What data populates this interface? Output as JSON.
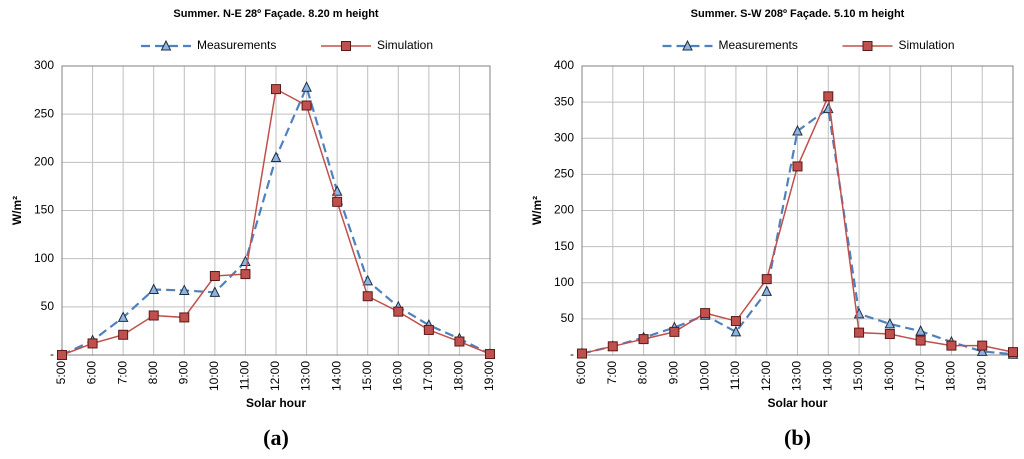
{
  "chart_data": [
    {
      "type": "line",
      "title": "Summer. N-E 28º Façade. 8.20 m height",
      "x_label": "Solar hour",
      "y_label": "W/m²",
      "panel_label": "(a)",
      "categories": [
        "5:00",
        "6:00",
        "7:00",
        "8:00",
        "9:00",
        "10:00",
        "11:00",
        "12:00",
        "13:00",
        "14:00",
        "15:00",
        "16:00",
        "17:00",
        "18:00",
        "19:00"
      ],
      "series": [
        {
          "name": "Measurements",
          "color": "#4f81bd",
          "marker": "triangle",
          "dashed": true,
          "values": [
            0,
            15,
            39,
            68,
            67,
            65,
            97,
            205,
            278,
            170,
            77,
            50,
            31,
            17,
            1
          ]
        },
        {
          "name": "Simulation",
          "color": "#c0504d",
          "marker": "square",
          "dashed": false,
          "values": [
            0,
            12,
            21,
            41,
            39,
            82,
            84,
            276,
            259,
            159,
            61,
            45,
            26,
            14,
            1
          ]
        }
      ],
      "ylim": [
        0,
        300
      ],
      "yticks": [
        {
          "value": 0,
          "label": "-"
        },
        50,
        100,
        150,
        200,
        250,
        300
      ],
      "grid": true,
      "legend": "top"
    },
    {
      "type": "line",
      "title": "Summer. S-W 208º Façade. 5.10 m height",
      "x_label": "Solar hour",
      "y_label": "W/m²",
      "panel_label": "(b)",
      "categories": [
        "6:00",
        "7:00",
        "8:00",
        "9:00",
        "10:00",
        "11:00",
        "12:00",
        "13:00",
        "14:00",
        "15:00",
        "16:00",
        "17:00",
        "18:00",
        "19:00",
        null
      ],
      "series": [
        {
          "name": "Measurements",
          "color": "#4f81bd",
          "marker": "triangle",
          "dashed": true,
          "values": [
            2,
            12,
            24,
            38,
            55,
            32,
            88,
            310,
            341,
            57,
            43,
            33,
            18,
            5,
            1
          ]
        },
        {
          "name": "Simulation",
          "color": "#c0504d",
          "marker": "square",
          "dashed": false,
          "values": [
            2,
            12,
            22,
            32,
            58,
            47,
            105,
            261,
            358,
            31,
            29,
            20,
            13,
            13,
            4
          ]
        }
      ],
      "ylim": [
        0,
        400
      ],
      "yticks": [
        {
          "value": 0,
          "label": "-"
        },
        50,
        100,
        150,
        200,
        250,
        300,
        350,
        400
      ],
      "grid": true,
      "legend": "top"
    }
  ]
}
